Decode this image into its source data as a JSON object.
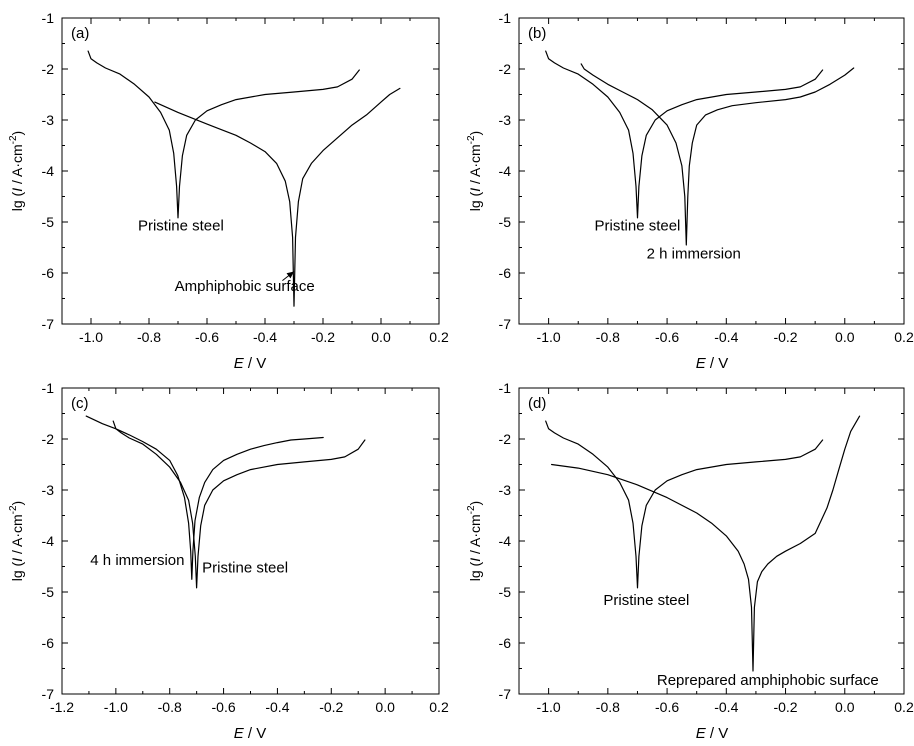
{
  "chart_data": [
    {
      "type": "line",
      "panel_label": "(a)",
      "xlabel_italic": "E",
      "xlabel_unit": " / V",
      "ylabel_pre": "lg (",
      "ylabel_italic": "I",
      "ylabel_unit": " / A·cm",
      "ylabel_sup": "-2",
      "ylabel_post": ")",
      "xlim": [
        -1.1,
        0.2
      ],
      "ylim": [
        -7,
        -1
      ],
      "xticks": [
        -1.0,
        -0.8,
        -0.6,
        -0.4,
        -0.2,
        0.0,
        0.2
      ],
      "xtick_labels": [
        "-1.0",
        "-0.8",
        "-0.6",
        "-0.4",
        "-0.2",
        "0.0",
        "0.2"
      ],
      "yticks": [
        -7,
        -6,
        -5,
        -4,
        -3,
        -2,
        -1
      ],
      "ytick_labels": [
        "-7",
        "-6",
        "-5",
        "-4",
        "-3",
        "-2",
        "-1"
      ],
      "series": [
        {
          "name": "Pristine steel",
          "x": [
            -1.01,
            -1.0,
            -0.98,
            -0.95,
            -0.9,
            -0.85,
            -0.8,
            -0.76,
            -0.73,
            -0.715,
            -0.705,
            -0.7,
            -0.695,
            -0.685,
            -0.67,
            -0.64,
            -0.6,
            -0.55,
            -0.5,
            -0.4,
            -0.3,
            -0.2,
            -0.15,
            -0.1,
            -0.075
          ],
          "y": [
            -1.65,
            -1.8,
            -1.88,
            -1.98,
            -2.1,
            -2.3,
            -2.55,
            -2.85,
            -3.2,
            -3.65,
            -4.3,
            -4.92,
            -4.3,
            -3.7,
            -3.3,
            -3.0,
            -2.82,
            -2.7,
            -2.6,
            -2.5,
            -2.45,
            -2.4,
            -2.35,
            -2.2,
            -2.02
          ]
        },
        {
          "name": "Amphiphobic surface",
          "x": [
            -0.78,
            -0.7,
            -0.6,
            -0.5,
            -0.45,
            -0.4,
            -0.36,
            -0.33,
            -0.315,
            -0.305,
            -0.3,
            -0.295,
            -0.285,
            -0.27,
            -0.24,
            -0.2,
            -0.15,
            -0.1,
            -0.05,
            0.0,
            0.03,
            0.065
          ],
          "y": [
            -2.65,
            -2.85,
            -3.08,
            -3.3,
            -3.45,
            -3.62,
            -3.85,
            -4.2,
            -4.6,
            -5.3,
            -6.65,
            -5.3,
            -4.6,
            -4.15,
            -3.85,
            -3.6,
            -3.35,
            -3.1,
            -2.9,
            -2.65,
            -2.5,
            -2.38
          ]
        }
      ],
      "annotations": [
        {
          "text": "Pristine steel",
          "x": -0.69,
          "y": -5.17
        },
        {
          "text": "Amphiphobic surface",
          "x": -0.47,
          "y": -6.35,
          "arrow_from": [
            -0.34,
            -6.15
          ],
          "arrow_to": [
            -0.3,
            -5.97
          ]
        }
      ]
    },
    {
      "type": "line",
      "panel_label": "(b)",
      "xlabel_italic": "E",
      "xlabel_unit": " / V",
      "ylabel_pre": "lg (",
      "ylabel_italic": "I",
      "ylabel_unit": " / A·cm",
      "ylabel_sup": "-2",
      "ylabel_post": ")",
      "xlim": [
        -1.1,
        0.2
      ],
      "ylim": [
        -7,
        -1
      ],
      "xticks": [
        -1.0,
        -0.8,
        -0.6,
        -0.4,
        -0.2,
        0.0,
        0.2
      ],
      "xtick_labels": [
        "-1.0",
        "-0.8",
        "-0.6",
        "-0.4",
        "-0.2",
        "0.0",
        "0.2"
      ],
      "yticks": [
        -7,
        -6,
        -5,
        -4,
        -3,
        -2,
        -1
      ],
      "ytick_labels": [
        "-7",
        "-6",
        "-5",
        "-4",
        "-3",
        "-2",
        "-1"
      ],
      "series": [
        {
          "name": "Pristine steel",
          "x": [
            -1.01,
            -1.0,
            -0.98,
            -0.95,
            -0.9,
            -0.85,
            -0.8,
            -0.76,
            -0.73,
            -0.715,
            -0.705,
            -0.7,
            -0.695,
            -0.685,
            -0.67,
            -0.64,
            -0.6,
            -0.55,
            -0.5,
            -0.4,
            -0.3,
            -0.2,
            -0.15,
            -0.1,
            -0.075
          ],
          "y": [
            -1.65,
            -1.8,
            -1.88,
            -1.98,
            -2.1,
            -2.3,
            -2.55,
            -2.85,
            -3.2,
            -3.65,
            -4.3,
            -4.92,
            -4.3,
            -3.7,
            -3.3,
            -3.0,
            -2.82,
            -2.7,
            -2.6,
            -2.5,
            -2.45,
            -2.4,
            -2.35,
            -2.2,
            -2.02
          ]
        },
        {
          "name": "2 h immersion",
          "x": [
            -0.89,
            -0.88,
            -0.85,
            -0.8,
            -0.75,
            -0.7,
            -0.65,
            -0.6,
            -0.57,
            -0.55,
            -0.54,
            -0.535,
            -0.53,
            -0.525,
            -0.515,
            -0.5,
            -0.47,
            -0.43,
            -0.38,
            -0.3,
            -0.2,
            -0.15,
            -0.1,
            -0.05,
            0.0,
            0.03
          ],
          "y": [
            -1.9,
            -2.0,
            -2.12,
            -2.3,
            -2.45,
            -2.6,
            -2.8,
            -3.1,
            -3.45,
            -3.9,
            -4.5,
            -5.45,
            -4.5,
            -3.9,
            -3.45,
            -3.1,
            -2.9,
            -2.8,
            -2.72,
            -2.66,
            -2.6,
            -2.55,
            -2.45,
            -2.3,
            -2.12,
            -1.98
          ]
        }
      ],
      "annotations": [
        {
          "text": "Pristine steel",
          "x": -0.7,
          "y": -5.17
        },
        {
          "text": "2 h immersion",
          "x": -0.51,
          "y": -5.72
        }
      ]
    },
    {
      "type": "line",
      "panel_label": "(c)",
      "xlabel_italic": "E",
      "xlabel_unit": " / V",
      "ylabel_pre": "lg (",
      "ylabel_italic": "I",
      "ylabel_unit": " / A·cm",
      "ylabel_sup": "-2",
      "ylabel_post": ")",
      "xlim": [
        -1.2,
        0.2
      ],
      "ylim": [
        -7,
        -1
      ],
      "xticks": [
        -1.2,
        -1.0,
        -0.8,
        -0.6,
        -0.4,
        -0.2,
        0.0,
        0.2
      ],
      "xtick_labels": [
        "-1.2",
        "-1.0",
        "-0.8",
        "-0.6",
        "-0.4",
        "-0.2",
        "0.0",
        "0.2"
      ],
      "yticks": [
        -7,
        -6,
        -5,
        -4,
        -3,
        -2,
        -1
      ],
      "ytick_labels": [
        "-7",
        "-6",
        "-5",
        "-4",
        "-3",
        "-2",
        "-1"
      ],
      "series": [
        {
          "name": "Pristine steel",
          "x": [
            -1.01,
            -1.0,
            -0.98,
            -0.95,
            -0.9,
            -0.85,
            -0.8,
            -0.76,
            -0.73,
            -0.715,
            -0.705,
            -0.7,
            -0.695,
            -0.685,
            -0.67,
            -0.64,
            -0.6,
            -0.55,
            -0.5,
            -0.4,
            -0.3,
            -0.2,
            -0.15,
            -0.1,
            -0.075
          ],
          "y": [
            -1.65,
            -1.8,
            -1.88,
            -1.98,
            -2.1,
            -2.3,
            -2.55,
            -2.85,
            -3.2,
            -3.65,
            -4.3,
            -4.92,
            -4.3,
            -3.7,
            -3.3,
            -3.0,
            -2.82,
            -2.7,
            -2.6,
            -2.5,
            -2.45,
            -2.4,
            -2.35,
            -2.2,
            -2.02
          ]
        },
        {
          "name": "4 h immersion",
          "x": [
            -1.11,
            -1.05,
            -1.0,
            -0.95,
            -0.9,
            -0.85,
            -0.8,
            -0.77,
            -0.745,
            -0.73,
            -0.722,
            -0.718,
            -0.714,
            -0.706,
            -0.69,
            -0.67,
            -0.64,
            -0.6,
            -0.55,
            -0.5,
            -0.45,
            -0.4,
            -0.35,
            -0.3,
            -0.23
          ],
          "y": [
            -1.55,
            -1.7,
            -1.8,
            -1.92,
            -2.05,
            -2.2,
            -2.42,
            -2.72,
            -3.15,
            -3.65,
            -4.2,
            -4.75,
            -4.2,
            -3.6,
            -3.15,
            -2.85,
            -2.6,
            -2.42,
            -2.3,
            -2.2,
            -2.13,
            -2.07,
            -2.02,
            -2.0,
            -1.97
          ]
        }
      ],
      "annotations": [
        {
          "text": "4 h immersion",
          "x": -0.92,
          "y": -4.47
        },
        {
          "text": "Pristine steel",
          "x": -0.52,
          "y": -4.62
        }
      ]
    },
    {
      "type": "line",
      "panel_label": "(d)",
      "xlabel_italic": "E",
      "xlabel_unit": " / V",
      "ylabel_pre": "lg (",
      "ylabel_italic": "I",
      "ylabel_unit": " / A·cm",
      "ylabel_sup": "-2",
      "ylabel_post": ")",
      "xlim": [
        -1.1,
        0.2
      ],
      "ylim": [
        -7,
        -1
      ],
      "xticks": [
        -1.0,
        -0.8,
        -0.6,
        -0.4,
        -0.2,
        0.0,
        0.2
      ],
      "xtick_labels": [
        "-1.0",
        "-0.8",
        "-0.6",
        "-0.4",
        "-0.2",
        "0.0",
        "0.2"
      ],
      "yticks": [
        -7,
        -6,
        -5,
        -4,
        -3,
        -2,
        -1
      ],
      "ytick_labels": [
        "-7",
        "-6",
        "-5",
        "-4",
        "-3",
        "-2",
        "-1"
      ],
      "series": [
        {
          "name": "Pristine steel",
          "x": [
            -1.01,
            -1.0,
            -0.98,
            -0.95,
            -0.9,
            -0.85,
            -0.8,
            -0.76,
            -0.73,
            -0.715,
            -0.705,
            -0.7,
            -0.695,
            -0.685,
            -0.67,
            -0.64,
            -0.6,
            -0.55,
            -0.5,
            -0.4,
            -0.3,
            -0.2,
            -0.15,
            -0.1,
            -0.075
          ],
          "y": [
            -1.65,
            -1.8,
            -1.88,
            -1.98,
            -2.1,
            -2.3,
            -2.55,
            -2.85,
            -3.2,
            -3.65,
            -4.3,
            -4.92,
            -4.3,
            -3.7,
            -3.3,
            -3.0,
            -2.82,
            -2.7,
            -2.6,
            -2.5,
            -2.45,
            -2.4,
            -2.35,
            -2.2,
            -2.02
          ]
        },
        {
          "name": "Reprepared amphiphobic surface",
          "x": [
            -0.99,
            -0.9,
            -0.8,
            -0.7,
            -0.6,
            -0.5,
            -0.45,
            -0.4,
            -0.36,
            -0.34,
            -0.325,
            -0.315,
            -0.31,
            -0.305,
            -0.295,
            -0.28,
            -0.26,
            -0.23,
            -0.2,
            -0.15,
            -0.1,
            -0.08,
            -0.06,
            -0.04,
            -0.02,
            0.0,
            0.02,
            0.05
          ],
          "y": [
            -2.5,
            -2.57,
            -2.7,
            -2.9,
            -3.15,
            -3.45,
            -3.65,
            -3.9,
            -4.2,
            -4.45,
            -4.75,
            -5.3,
            -6.55,
            -5.3,
            -4.8,
            -4.6,
            -4.45,
            -4.3,
            -4.2,
            -4.05,
            -3.85,
            -3.6,
            -3.35,
            -3.0,
            -2.6,
            -2.2,
            -1.85,
            -1.55
          ]
        }
      ],
      "annotations": [
        {
          "text": "Pristine steel",
          "x": -0.67,
          "y": -5.25
        },
        {
          "text": "Reprepared amphiphobic surface",
          "x": -0.26,
          "y": -6.82
        }
      ]
    }
  ]
}
